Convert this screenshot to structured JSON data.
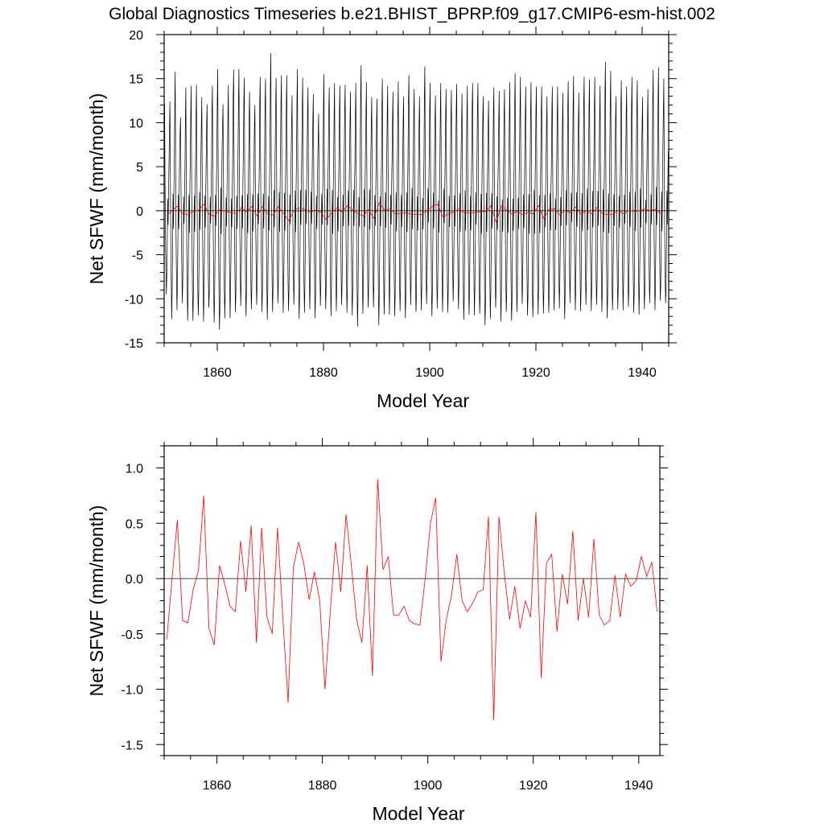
{
  "title": "Global Diagnostics Timeseries b.e21.BHIST_BPRP.f09_g17.CMIP6-esm-hist.002",
  "colors": {
    "monthly": "#000000",
    "annual": "#ff0000",
    "zero_line": "#000000"
  },
  "chart_data": [
    {
      "type": "line",
      "xlabel": "Model Year",
      "ylabel": "Net SFWF (mm/month)",
      "xlim": [
        1850,
        1945
      ],
      "ylim": [
        -15,
        20
      ],
      "xticks": [
        1860,
        1880,
        1900,
        1920,
        1940
      ],
      "xtick_labels": [
        "1860",
        "1880",
        "1900",
        "1920",
        "1940"
      ],
      "yticks": [
        -15,
        -10,
        -5,
        0,
        5,
        10,
        15,
        20
      ],
      "ytick_labels": [
        "-15",
        "-10",
        "-5",
        "0",
        "5",
        "10",
        "15",
        "20"
      ],
      "reference_line": 0,
      "grid": false,
      "legend": "none",
      "series": [
        {
          "style": "monthly",
          "x_start": 1850.0,
          "x_step": 0.083333,
          "monthly_climatology": [
            9.0,
            11.5,
            3.5,
            -3.0,
            -8.0,
            -11.5,
            -9.0,
            -4.0,
            1.5,
            -2.0,
            2.0,
            5.0
          ],
          "annual_peak_max": [
            12.1,
            12.4,
            15.8,
            10.6,
            14.0,
            14.2,
            14.3,
            12.9,
            12.1,
            14.2,
            16.1,
            12.1,
            14.3,
            16.0,
            16.1,
            15.1,
            13.5,
            12.0,
            15.2,
            15.0,
            17.9,
            15.1,
            15.4,
            15.4,
            13.1,
            16.1,
            15.1,
            14.0,
            13.3,
            11.0,
            15.5,
            14.0,
            14.5,
            14.2,
            14.3,
            13.5,
            14.5,
            16.5,
            14.6,
            12.9,
            12.7,
            15.0,
            14.2,
            13.5,
            14.7,
            13.0,
            15.4,
            13.8,
            13.0,
            16.4,
            14.5,
            13.1,
            14.5,
            13.8,
            13.7,
            14.4,
            13.3,
            14.2,
            14.5,
            14.5,
            13.0,
            12.5,
            14.0,
            13.6,
            13.8,
            14.6,
            15.6,
            15.2,
            14.1,
            14.6,
            14.1,
            14.1,
            13.0,
            14.1,
            14.1,
            13.4,
            14.7,
            15.3,
            13.4,
            15.2,
            14.9,
            15.2,
            14.2,
            16.9,
            15.9,
            13.0,
            14.8,
            14.1,
            15.2,
            14.8,
            12.9,
            13.8,
            16.0,
            16.3,
            15.0
          ],
          "annual_trough_min": [
            -9.5,
            -12.3,
            -11.3,
            -10.5,
            -12.5,
            -12.5,
            -11.9,
            -12.6,
            -11.0,
            -12.7,
            -13.5,
            -12.2,
            -12.2,
            -11.5,
            -10.8,
            -12.0,
            -11.2,
            -10.7,
            -11.5,
            -12.4,
            -11.5,
            -10.5,
            -11.6,
            -11.4,
            -10.7,
            -12.3,
            -11.6,
            -11.2,
            -12.2,
            -10.8,
            -11.2,
            -12.0,
            -11.4,
            -10.7,
            -11.6,
            -11.9,
            -13.2,
            -11.7,
            -11.0,
            -11.0,
            -13.0,
            -11.8,
            -11.8,
            -12.0,
            -11.4,
            -12.2,
            -10.7,
            -11.5,
            -11.3,
            -10.6,
            -12.0,
            -11.1,
            -11.5,
            -11.6,
            -10.3,
            -11.2,
            -12.4,
            -11.8,
            -11.9,
            -11.7,
            -13.0,
            -12.3,
            -11.0,
            -12.6,
            -11.5,
            -12.5,
            -11.5,
            -10.6,
            -11.9,
            -12.1,
            -11.8,
            -11.7,
            -11.6,
            -11.3,
            -11.1,
            -12.3,
            -10.5,
            -11.3,
            -11.4,
            -10.7,
            -11.4,
            -10.7,
            -11.5,
            -12.2,
            -11.3,
            -11.2,
            -11.3,
            -10.9,
            -11.6,
            -11.8,
            -11.2,
            -10.5,
            -11.3,
            -10.2,
            -10.5
          ]
        },
        {
          "style": "annual",
          "x_start": 1850.5,
          "x_step": 1,
          "values": [
            -0.55,
            0.0,
            0.53,
            -0.38,
            -0.4,
            -0.1,
            0.07,
            0.75,
            -0.45,
            -0.6,
            0.12,
            -0.05,
            -0.25,
            -0.3,
            0.34,
            -0.12,
            0.48,
            -0.58,
            0.46,
            -0.35,
            -0.5,
            0.46,
            -0.35,
            -1.12,
            0.1,
            0.33,
            0.13,
            -0.19,
            0.06,
            -0.2,
            -1.0,
            -0.3,
            0.33,
            -0.12,
            0.58,
            0.12,
            -0.37,
            -0.58,
            0.12,
            -0.88,
            0.9,
            0.08,
            0.2,
            -0.33,
            -0.33,
            -0.25,
            -0.38,
            -0.41,
            -0.42,
            0.0,
            0.5,
            0.73,
            -0.75,
            -0.37,
            -0.15,
            0.22,
            -0.2,
            -0.3,
            -0.22,
            -0.12,
            -0.1,
            0.56,
            -1.28,
            0.56,
            0.05,
            -0.37,
            -0.07,
            -0.45,
            -0.2,
            -0.35,
            0.6,
            -0.9,
            0.14,
            0.22,
            -0.48,
            0.04,
            -0.23,
            0.43,
            -0.38,
            0.0,
            -0.35,
            0.36,
            -0.33,
            -0.42,
            -0.38,
            0.03,
            -0.35,
            0.04,
            -0.07,
            -0.02,
            0.2,
            0.02,
            0.15,
            -0.3
          ]
        }
      ]
    },
    {
      "type": "line",
      "xlabel": "Model Year",
      "ylabel": "Net SFWF (mm/month)",
      "xlim": [
        1850,
        1944
      ],
      "ylim": [
        -1.6,
        1.2
      ],
      "xticks": [
        1860,
        1880,
        1900,
        1920,
        1940
      ],
      "xtick_labels": [
        "1860",
        "1880",
        "1900",
        "1920",
        "1940"
      ],
      "yticks": [
        -1.5,
        -1.0,
        -0.5,
        0.0,
        0.5,
        1.0
      ],
      "ytick_labels": [
        "-1.5",
        "-1.0",
        "-0.5",
        "0.0",
        "0.5",
        "1.0"
      ],
      "reference_line": 0,
      "grid": false,
      "legend": "none",
      "series": [
        {
          "style": "annual",
          "x_start": 1850.5,
          "x_step": 1,
          "values": [
            -0.55,
            0.0,
            0.53,
            -0.38,
            -0.4,
            -0.1,
            0.07,
            0.75,
            -0.45,
            -0.6,
            0.12,
            -0.05,
            -0.25,
            -0.3,
            0.34,
            -0.12,
            0.48,
            -0.58,
            0.46,
            -0.35,
            -0.5,
            0.46,
            -0.35,
            -1.12,
            0.1,
            0.33,
            0.13,
            -0.19,
            0.06,
            -0.2,
            -1.0,
            -0.3,
            0.33,
            -0.12,
            0.58,
            0.12,
            -0.37,
            -0.58,
            0.12,
            -0.88,
            0.9,
            0.08,
            0.2,
            -0.33,
            -0.33,
            -0.25,
            -0.38,
            -0.41,
            -0.42,
            0.0,
            0.5,
            0.73,
            -0.75,
            -0.37,
            -0.15,
            0.22,
            -0.2,
            -0.3,
            -0.22,
            -0.12,
            -0.1,
            0.56,
            -1.28,
            0.56,
            0.05,
            -0.37,
            -0.07,
            -0.45,
            -0.2,
            -0.35,
            0.6,
            -0.9,
            0.14,
            0.22,
            -0.48,
            0.04,
            -0.23,
            0.43,
            -0.38,
            0.0,
            -0.35,
            0.36,
            -0.33,
            -0.42,
            -0.38,
            0.03,
            -0.35,
            0.04,
            -0.07,
            -0.02,
            0.2,
            0.02,
            0.15,
            -0.3
          ]
        }
      ]
    }
  ]
}
